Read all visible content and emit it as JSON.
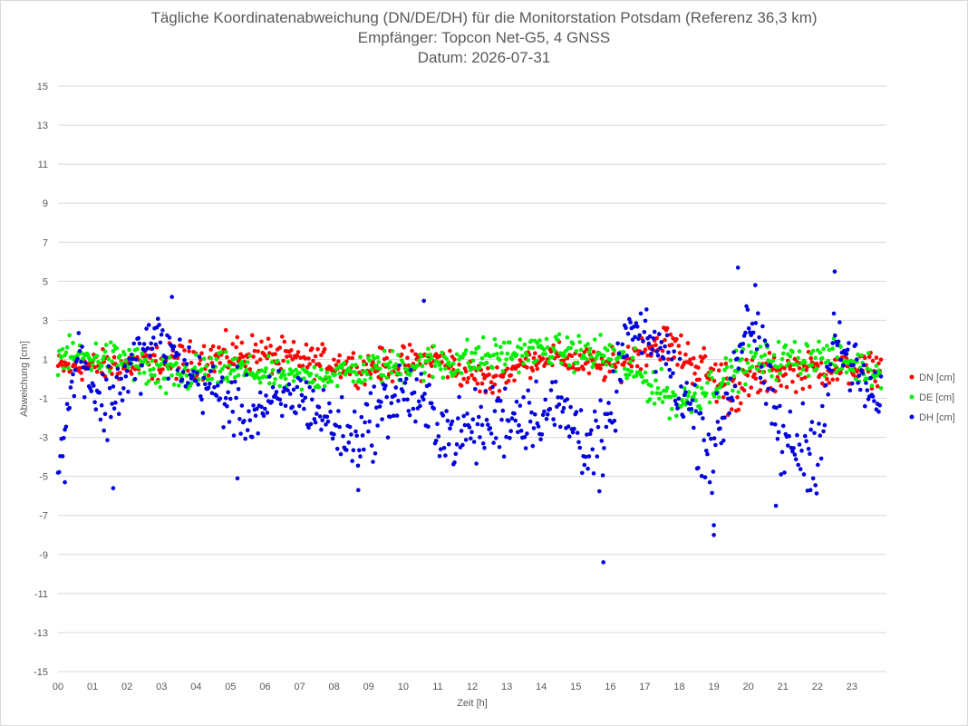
{
  "chart_data": {
    "type": "scatter",
    "title": "Tägliche Koordinatenabweichung (DN/DE/DH) für die Monitorstation Potsdam (Referenz 36,3 km)",
    "subtitle": "Empfänger: Topcon Net-G5, 4 GNSS",
    "date_line": "Datum: 2026-07-31",
    "xlabel": "Zeit [h]",
    "ylabel": "Abweichung [cm]",
    "xlim": [
      0,
      24
    ],
    "ylim": [
      -15,
      15
    ],
    "x_ticks": [
      "00",
      "01",
      "02",
      "03",
      "04",
      "05",
      "06",
      "07",
      "08",
      "09",
      "10",
      "11",
      "12",
      "13",
      "14",
      "15",
      "16",
      "17",
      "18",
      "19",
      "20",
      "21",
      "22",
      "23"
    ],
    "y_ticks": [
      15,
      13,
      11,
      9,
      7,
      5,
      3,
      1,
      -1,
      -3,
      -5,
      -7,
      -9,
      -11,
      -13,
      -15
    ],
    "y_tick_labels": [
      "15",
      "13",
      "11",
      "9",
      "7",
      "5",
      "3",
      "1 ",
      "-1",
      "-3",
      "-5",
      "-7",
      "-9",
      "-11",
      "-13",
      "-15"
    ],
    "grid": true,
    "legend_position": "right",
    "sample_interval_h": 0.0333,
    "series": [
      {
        "name": "DN [cm]",
        "color": "#ff0000",
        "segments": [
          {
            "t": 0.0,
            "level": 0.6,
            "spread": 0.6
          },
          {
            "t": 2.0,
            "level": 0.7,
            "spread": 0.7
          },
          {
            "t": 4.0,
            "level": 1.0,
            "spread": 0.8
          },
          {
            "t": 5.5,
            "level": 1.3,
            "spread": 0.9
          },
          {
            "t": 7.0,
            "level": 1.0,
            "spread": 0.7
          },
          {
            "t": 9.0,
            "level": 0.6,
            "spread": 0.7
          },
          {
            "t": 11.0,
            "level": 1.0,
            "spread": 0.8
          },
          {
            "t": 12.5,
            "level": -0.2,
            "spread": 0.7
          },
          {
            "t": 14.0,
            "level": 1.2,
            "spread": 0.6
          },
          {
            "t": 16.0,
            "level": 0.6,
            "spread": 0.7
          },
          {
            "t": 17.5,
            "level": 2.0,
            "spread": 0.8
          },
          {
            "t": 19.5,
            "level": -0.5,
            "spread": 1.2
          },
          {
            "t": 21.0,
            "level": 0.4,
            "spread": 0.8
          },
          {
            "t": 23.8,
            "level": 0.5,
            "spread": 0.7
          }
        ]
      },
      {
        "name": "DE [cm]",
        "color": "#00ee00",
        "segments": [
          {
            "t": 0.0,
            "level": 1.2,
            "spread": 0.7
          },
          {
            "t": 2.0,
            "level": 1.0,
            "spread": 0.8
          },
          {
            "t": 3.0,
            "level": 0.0,
            "spread": 0.9
          },
          {
            "t": 5.0,
            "level": 0.5,
            "spread": 0.7
          },
          {
            "t": 7.0,
            "level": 0.0,
            "spread": 0.6
          },
          {
            "t": 9.0,
            "level": 0.5,
            "spread": 0.7
          },
          {
            "t": 12.0,
            "level": 1.0,
            "spread": 0.9
          },
          {
            "t": 14.0,
            "level": 1.5,
            "spread": 0.6
          },
          {
            "t": 16.0,
            "level": 1.2,
            "spread": 0.9
          },
          {
            "t": 18.0,
            "level": -1.3,
            "spread": 0.8
          },
          {
            "t": 20.0,
            "level": 0.8,
            "spread": 0.8
          },
          {
            "t": 22.0,
            "level": 1.2,
            "spread": 0.8
          },
          {
            "t": 23.8,
            "level": 0.3,
            "spread": 0.7
          }
        ]
      },
      {
        "name": "DH [cm]",
        "color": "#0000dd",
        "segments": [
          {
            "t": 0.0,
            "level": -4.5,
            "spread": 0.6
          },
          {
            "t": 0.6,
            "level": 1.5,
            "spread": 1.0
          },
          {
            "t": 1.3,
            "level": -1.5,
            "spread": 1.8
          },
          {
            "t": 2.8,
            "level": 2.2,
            "spread": 1.2
          },
          {
            "t": 4.0,
            "level": 0.0,
            "spread": 1.2
          },
          {
            "t": 5.5,
            "level": -1.8,
            "spread": 1.5
          },
          {
            "t": 7.0,
            "level": -0.8,
            "spread": 1.2
          },
          {
            "t": 8.5,
            "level": -3.2,
            "spread": 1.5
          },
          {
            "t": 10.0,
            "level": -0.5,
            "spread": 1.5
          },
          {
            "t": 11.5,
            "level": -3.0,
            "spread": 1.5
          },
          {
            "t": 12.8,
            "level": -2.0,
            "spread": 1.7
          },
          {
            "t": 14.5,
            "level": -1.5,
            "spread": 1.5
          },
          {
            "t": 15.8,
            "level": -4.0,
            "spread": 2.0
          },
          {
            "t": 16.5,
            "level": 2.5,
            "spread": 1.0
          },
          {
            "t": 17.5,
            "level": 1.5,
            "spread": 1.3
          },
          {
            "t": 19.0,
            "level": -4.0,
            "spread": 2.0
          },
          {
            "t": 20.0,
            "level": 3.5,
            "spread": 1.5
          },
          {
            "t": 21.0,
            "level": -3.5,
            "spread": 1.8
          },
          {
            "t": 22.0,
            "level": -3.5,
            "spread": 1.8
          },
          {
            "t": 22.5,
            "level": 2.0,
            "spread": 1.5
          },
          {
            "t": 23.8,
            "level": -1.5,
            "spread": 1.2
          }
        ],
        "outliers": [
          {
            "x": 0.2,
            "y": -5.3
          },
          {
            "x": 1.6,
            "y": -5.6
          },
          {
            "x": 3.3,
            "y": 4.2
          },
          {
            "x": 5.2,
            "y": -5.1
          },
          {
            "x": 8.7,
            "y": -5.7
          },
          {
            "x": 10.6,
            "y": 4.0
          },
          {
            "x": 15.8,
            "y": -9.4
          },
          {
            "x": 19.0,
            "y": -7.5
          },
          {
            "x": 19.0,
            "y": -8.0
          },
          {
            "x": 19.7,
            "y": 5.7
          },
          {
            "x": 20.2,
            "y": 4.8
          },
          {
            "x": 20.8,
            "y": -6.5
          },
          {
            "x": 21.8,
            "y": -5.7
          },
          {
            "x": 22.5,
            "y": 5.5
          }
        ]
      }
    ]
  }
}
